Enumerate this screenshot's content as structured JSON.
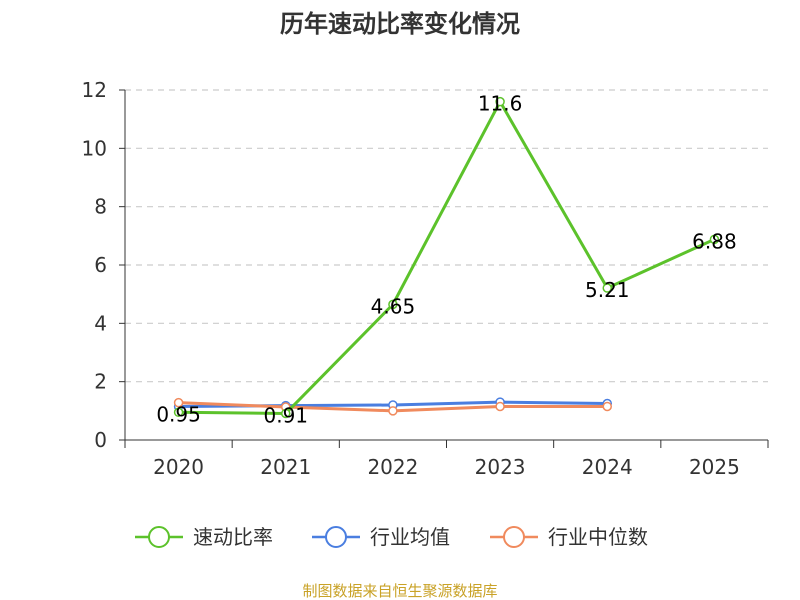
{
  "chart_data": {
    "type": "line",
    "title": "历年速动比率变化情况",
    "categories": [
      "2020",
      "2021",
      "2022",
      "2023",
      "2024",
      "2025"
    ],
    "ylim": [
      0,
      12
    ],
    "yticks": [
      0,
      2,
      4,
      6,
      8,
      10,
      12
    ],
    "grid": true,
    "legend_position": "bottom",
    "series": [
      {
        "name": "速动比率",
        "color": "#5cc22b",
        "values": [
          0.95,
          0.91,
          4.65,
          11.6,
          5.21,
          6.88
        ],
        "labels": [
          "0.95",
          "0.91",
          "4.65",
          "11.6",
          "5.21",
          "6.88"
        ]
      },
      {
        "name": "行业均值",
        "color": "#4a7ee0",
        "values": [
          1.15,
          1.18,
          1.2,
          1.3,
          1.25,
          null
        ]
      },
      {
        "name": "行业中位数",
        "color": "#f08a5d",
        "values": [
          1.28,
          1.13,
          1.0,
          1.15,
          1.15,
          null
        ]
      }
    ]
  },
  "footer": {
    "source": "制图数据来自恒生聚源数据库"
  }
}
